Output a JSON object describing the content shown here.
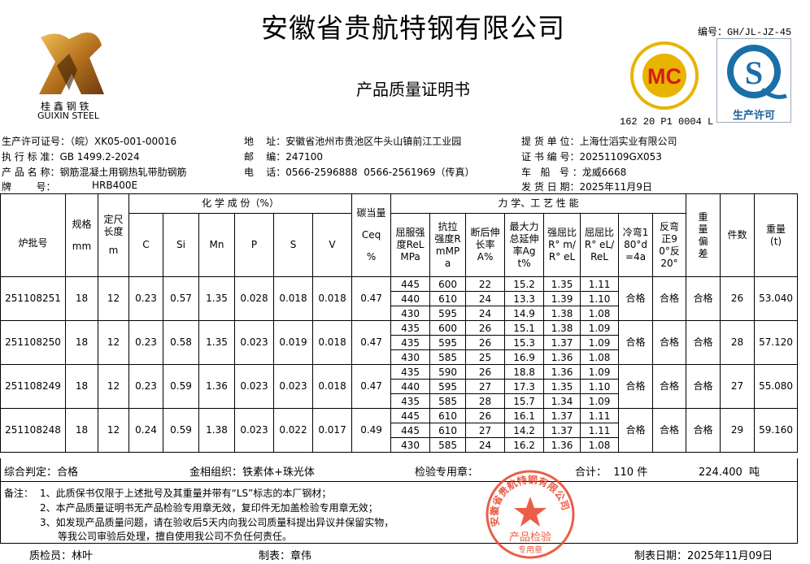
{
  "header": {
    "company": "安徽省贵航特钢有限公司",
    "title": "产品质量证明书",
    "doc_no": "编号：GH/JL-JZ-45",
    "logo_text": "桂 鑫 钢 铁",
    "logo_text_en": "GUIXIN STEEL",
    "mc_logo_text": "MC",
    "mc_cert_code": "162 20 P1 0004 L",
    "qs_logo_text": "生产许可"
  },
  "info": {
    "license": "生产许可证号：（皖）XK05-001-00016",
    "standard": "执 行 标 准：GB 1499.2-2024",
    "product": "产 品 名 称：钢筋混凝土用钢热轧带肋钢筋",
    "grade_label": "牌        号：",
    "grade": "HRB400E",
    "address": "地    址：安徽省池州市贵池区牛头山镇前江工业园",
    "postcode": "邮    编：247100",
    "phone": "电    话：0566-2596888  0566-2561969（传真）",
    "consignee": "提 货 单 位：上海仕滔实业有限公司",
    "cert_no": "证 书 编 号：20251109GX053",
    "vehicle": "车   船   号 ：龙威6668",
    "ship_date": "发 货 日 期：2025年11月9日"
  },
  "table": {
    "h_batch": "炉批号",
    "h_spec": "规格",
    "h_spec_unit": "mm",
    "h_length": "定尺长度",
    "h_length_unit": "m",
    "h_chem": "化 学 成 份（%）",
    "h_chem_cols": [
      "C",
      "Si",
      "Mn",
      "P",
      "S",
      "V"
    ],
    "h_ceq": "碳当量",
    "h_ceq_sym": "Ceq",
    "h_ceq_unit": "%",
    "h_mech": "力 学、工 艺 性 能",
    "h_mech_cols": [
      "屈服强度ReLMPa",
      "抗拉强度RmMPa",
      "断后伸长率A%",
      "最大力总延伸率Agt%",
      "强屈比R° m/R° eL",
      "屈屈比R° eL/ReL",
      "冷弯180°d=4a",
      "反弯正90°反20°"
    ],
    "h_dev": "重量偏差",
    "h_count": "件数",
    "h_weight": "重量(t)",
    "rows": [
      {
        "batch": "251108251",
        "spec": "18",
        "length": "12",
        "chem": [
          "0.23",
          "0.57",
          "1.35",
          "0.028",
          "0.018",
          "0.018"
        ],
        "ceq": "0.47",
        "mech": [
          [
            "445",
            "600",
            "22",
            "15.2",
            "1.35",
            "1.11"
          ],
          [
            "440",
            "610",
            "24",
            "13.3",
            "1.39",
            "1.10"
          ],
          [
            "430",
            "595",
            "24",
            "14.9",
            "1.38",
            "1.08"
          ]
        ],
        "bend": "合格",
        "rebend": "合格",
        "dev": "合格",
        "count": "26",
        "weight": "53.040"
      },
      {
        "batch": "251108250",
        "spec": "18",
        "length": "12",
        "chem": [
          "0.23",
          "0.58",
          "1.35",
          "0.023",
          "0.019",
          "0.018"
        ],
        "ceq": "0.47",
        "mech": [
          [
            "435",
            "600",
            "26",
            "15.1",
            "1.38",
            "1.09"
          ],
          [
            "435",
            "595",
            "26",
            "15.3",
            "1.37",
            "1.09"
          ],
          [
            "430",
            "585",
            "25",
            "16.9",
            "1.36",
            "1.08"
          ]
        ],
        "bend": "合格",
        "rebend": "合格",
        "dev": "合格",
        "count": "28",
        "weight": "57.120"
      },
      {
        "batch": "251108249",
        "spec": "18",
        "length": "12",
        "chem": [
          "0.23",
          "0.59",
          "1.36",
          "0.023",
          "0.023",
          "0.018"
        ],
        "ceq": "0.47",
        "mech": [
          [
            "435",
            "590",
            "26",
            "18.8",
            "1.36",
            "1.09"
          ],
          [
            "440",
            "595",
            "27",
            "17.3",
            "1.35",
            "1.10"
          ],
          [
            "435",
            "585",
            "28",
            "15.7",
            "1.34",
            "1.09"
          ]
        ],
        "bend": "合格",
        "rebend": "合格",
        "dev": "合格",
        "count": "27",
        "weight": "55.080"
      },
      {
        "batch": "251108248",
        "spec": "18",
        "length": "12",
        "chem": [
          "0.24",
          "0.59",
          "1.38",
          "0.023",
          "0.022",
          "0.017"
        ],
        "ceq": "0.49",
        "mech": [
          [
            "445",
            "610",
            "26",
            "16.1",
            "1.37",
            "1.11"
          ],
          [
            "445",
            "610",
            "27",
            "14.2",
            "1.37",
            "1.11"
          ],
          [
            "430",
            "585",
            "24",
            "16.2",
            "1.36",
            "1.08"
          ]
        ],
        "bend": "合格",
        "rebend": "合格",
        "dev": "合格",
        "count": "29",
        "weight": "59.160"
      }
    ]
  },
  "summary": {
    "judgement": "综合判定：合格",
    "structure": "金相组织：铁素体+珠光体",
    "stamp_label": "检验专用章：",
    "total": "合计：  110 件",
    "total_weight": "224.400  吨"
  },
  "notes": {
    "label": "备注：",
    "items": [
      "1、此质保书仅限于上述批号及其重量并带有“LS”标志的本厂钢材；",
      "2、本产品质量证明书无产品检验专用章无效，复印件无加盖检验专用章无效；",
      "3、如发现产品质量问题，请在验收后5天内向我公司质量科提出异议并保留实物，",
      "等我公司审验后处理，擅自使用我公司不负任何责任。"
    ]
  },
  "stamp": {
    "ring_text": "安徽省贵航特钢有限公司",
    "center_text": "产品检验",
    "bottom_text": "专用章",
    "color": "#e8482e"
  },
  "footer": {
    "inspector": "质检员：林叶",
    "preparer": "制表：章伟",
    "date": "制表日期：2025年11月09日"
  }
}
